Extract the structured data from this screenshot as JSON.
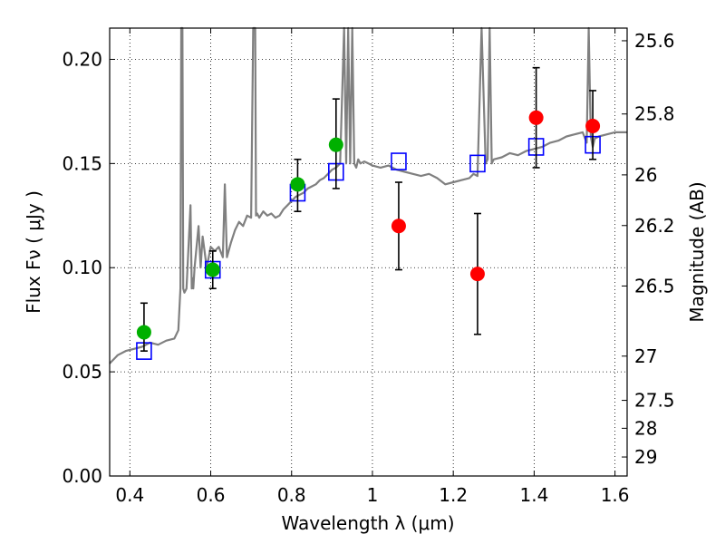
{
  "chart_data": {
    "type": "scatter",
    "xlabel": "Wavelength  λ (μm)",
    "ylabel": "Flux  Fν  ( μJy )",
    "y2label": "Magnitude (AB)",
    "xlim": [
      0.35,
      1.63
    ],
    "ylim": [
      0.0,
      0.215
    ],
    "grid": true,
    "x_ticks": [
      {
        "value": 0.4,
        "label": "0.4"
      },
      {
        "value": 0.6,
        "label": "0.6"
      },
      {
        "value": 0.8,
        "label": "0.8"
      },
      {
        "value": 1.0,
        "label": "1"
      },
      {
        "value": 1.2,
        "label": "1.2"
      },
      {
        "value": 1.4,
        "label": "1.4"
      },
      {
        "value": 1.6,
        "label": "1.6"
      }
    ],
    "y_ticks": [
      {
        "value": 0.0,
        "label": "0.00"
      },
      {
        "value": 0.05,
        "label": "0.05"
      },
      {
        "value": 0.1,
        "label": "0.10"
      },
      {
        "value": 0.15,
        "label": "0.15"
      },
      {
        "value": 0.2,
        "label": "0.20"
      }
    ],
    "y2_ticks": [
      {
        "value": 25.6,
        "label": "25.6"
      },
      {
        "value": 25.8,
        "label": "25.8"
      },
      {
        "value": 26.0,
        "label": "26"
      },
      {
        "value": 26.2,
        "label": "26.2"
      },
      {
        "value": 26.5,
        "label": "26.5"
      },
      {
        "value": 27.0,
        "label": "27"
      },
      {
        "value": 27.5,
        "label": "27.5"
      },
      {
        "value": 28.0,
        "label": "28"
      },
      {
        "value": 29.0,
        "label": "29"
      }
    ],
    "series": [
      {
        "kind": "line",
        "color": "#808080",
        "x": [
          0.35,
          0.37,
          0.39,
          0.41,
          0.43,
          0.45,
          0.47,
          0.49,
          0.51,
          0.52,
          0.525,
          0.527,
          0.53,
          0.532,
          0.535,
          0.54,
          0.55,
          0.553,
          0.555,
          0.557,
          0.56,
          0.57,
          0.575,
          0.58,
          0.59,
          0.6,
          0.61,
          0.62,
          0.63,
          0.635,
          0.64,
          0.65,
          0.66,
          0.67,
          0.68,
          0.69,
          0.7,
          0.705,
          0.71,
          0.712,
          0.715,
          0.72,
          0.73,
          0.74,
          0.75,
          0.76,
          0.77,
          0.78,
          0.79,
          0.8,
          0.81,
          0.82,
          0.83,
          0.84,
          0.85,
          0.86,
          0.87,
          0.88,
          0.89,
          0.9,
          0.91,
          0.92,
          0.93,
          0.935,
          0.94,
          0.945,
          0.95,
          0.955,
          0.96,
          0.965,
          0.97,
          0.98,
          0.99,
          1.0,
          1.02,
          1.04,
          1.06,
          1.08,
          1.1,
          1.12,
          1.14,
          1.16,
          1.18,
          1.2,
          1.22,
          1.24,
          1.25,
          1.26,
          1.27,
          1.28,
          1.285,
          1.29,
          1.295,
          1.3,
          1.32,
          1.34,
          1.36,
          1.38,
          1.4,
          1.42,
          1.44,
          1.46,
          1.48,
          1.5,
          1.52,
          1.53,
          1.535,
          1.54,
          1.545,
          1.55,
          1.56,
          1.58,
          1.6,
          1.63
        ],
        "y": [
          0.054,
          0.058,
          0.06,
          0.061,
          0.062,
          0.064,
          0.063,
          0.065,
          0.066,
          0.07,
          0.09,
          0.215,
          0.215,
          0.09,
          0.088,
          0.09,
          0.13,
          0.09,
          0.095,
          0.09,
          0.1,
          0.12,
          0.1,
          0.115,
          0.1,
          0.11,
          0.108,
          0.11,
          0.105,
          0.14,
          0.105,
          0.112,
          0.118,
          0.122,
          0.12,
          0.125,
          0.124,
          0.215,
          0.215,
          0.125,
          0.126,
          0.124,
          0.127,
          0.125,
          0.126,
          0.124,
          0.125,
          0.128,
          0.13,
          0.132,
          0.134,
          0.135,
          0.136,
          0.138,
          0.139,
          0.14,
          0.142,
          0.143,
          0.145,
          0.147,
          0.148,
          0.15,
          0.215,
          0.15,
          0.215,
          0.15,
          0.215,
          0.15,
          0.148,
          0.152,
          0.15,
          0.151,
          0.15,
          0.149,
          0.148,
          0.149,
          0.147,
          0.146,
          0.145,
          0.144,
          0.145,
          0.143,
          0.14,
          0.141,
          0.142,
          0.143,
          0.145,
          0.144,
          0.215,
          0.15,
          0.152,
          0.215,
          0.15,
          0.152,
          0.153,
          0.155,
          0.154,
          0.156,
          0.157,
          0.158,
          0.16,
          0.161,
          0.163,
          0.164,
          0.165,
          0.16,
          0.215,
          0.163,
          0.158,
          0.162,
          0.163,
          0.164,
          0.165,
          0.165
        ]
      },
      {
        "kind": "open-square",
        "color": "#0000ff",
        "x": [
          0.435,
          0.605,
          0.815,
          0.91,
          1.065,
          1.26,
          1.405,
          1.545
        ],
        "y": [
          0.06,
          0.099,
          0.136,
          0.146,
          0.151,
          0.15,
          0.158,
          0.159
        ]
      },
      {
        "kind": "filled-circle",
        "color": "#00b000",
        "x": [
          0.435,
          0.605,
          0.815,
          0.91
        ],
        "y": [
          0.069,
          0.099,
          0.14,
          0.159
        ],
        "err_low": [
          0.06,
          0.09,
          0.127,
          0.138
        ],
        "err_high": [
          0.083,
          0.108,
          0.152,
          0.181
        ]
      },
      {
        "kind": "filled-circle",
        "color": "#ff0000",
        "x": [
          1.065,
          1.26,
          1.405,
          1.545
        ],
        "y": [
          0.12,
          0.097,
          0.172,
          0.168
        ],
        "err_low": [
          0.099,
          0.068,
          0.148,
          0.152
        ],
        "err_high": [
          0.141,
          0.126,
          0.196,
          0.185
        ]
      }
    ]
  }
}
